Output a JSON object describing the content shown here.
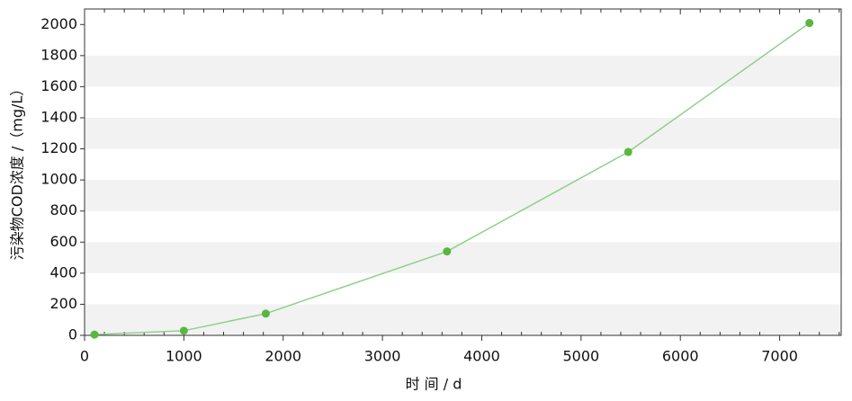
{
  "chart_data": {
    "type": "line",
    "x_label": "时 间 / d",
    "y_label": "污染物COD浓度 /（mg/L）",
    "x": [
      100,
      1000,
      1825,
      3650,
      5475,
      7300
    ],
    "series": [
      {
        "name": "COD",
        "color": "#5ab640",
        "values": [
          5,
          30,
          140,
          540,
          1180,
          2010
        ]
      }
    ],
    "xlim": [
      0,
      7620
    ],
    "xticks": [
      0,
      1000,
      2000,
      3000,
      4000,
      5000,
      6000,
      7000
    ],
    "ylim": [
      0,
      2100
    ],
    "yticks": [
      0,
      200,
      400,
      600,
      800,
      1000,
      1200,
      1400,
      1600,
      1800,
      2000
    ],
    "grid": true
  }
}
